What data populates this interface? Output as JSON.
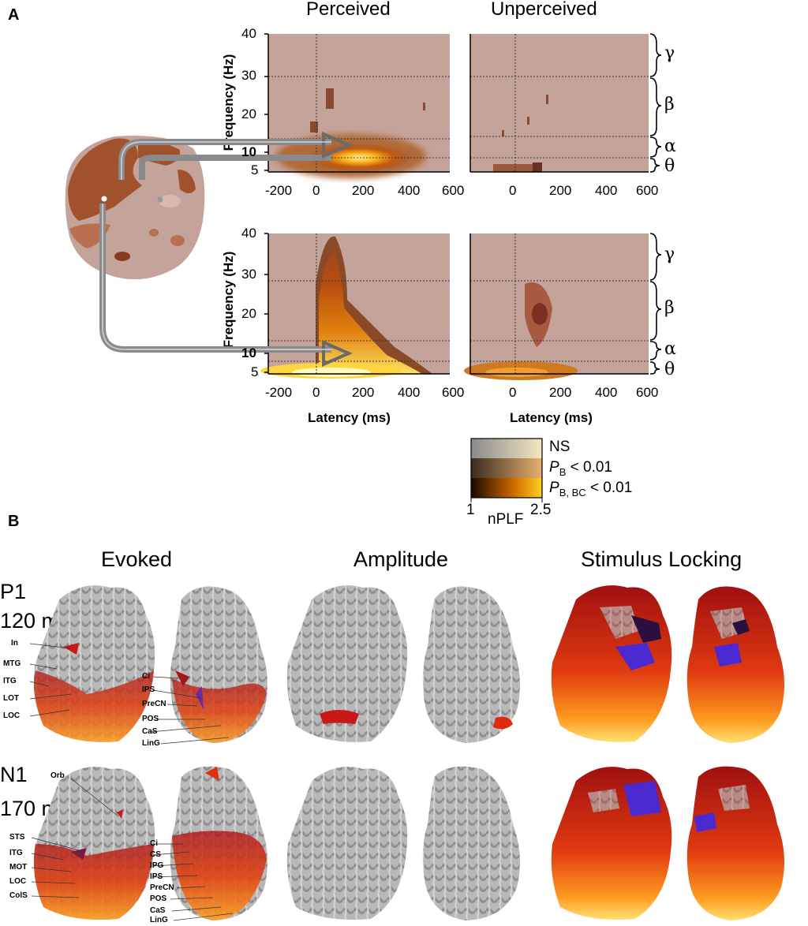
{
  "panel_a": {
    "letter": "A",
    "col_titles": [
      "Perceived",
      "Unperceived"
    ],
    "ylabel": "Frequency (Hz)",
    "xlabel": "Latency (ms)",
    "xticks": [
      "-200",
      "0",
      "200",
      "400",
      "600"
    ],
    "yticks": [
      "40",
      "30",
      "20",
      "10",
      "5"
    ],
    "bands": [
      "γ",
      "β",
      "α",
      "θ"
    ],
    "legend": {
      "ns": "NS",
      "pb": "P",
      "pb_sub": "B",
      "pb_val": " < 0.01",
      "pbbc": "P",
      "pbbc_sub": "B, BC",
      "pbbc_val": " < 0.01",
      "min": "1",
      "max": "2.5",
      "label": "nPLF"
    }
  },
  "panel_b": {
    "letter": "B",
    "col_titles": [
      "Evoked",
      "Amplitude",
      "Stimulus Locking"
    ],
    "rows": [
      {
        "component": "P1",
        "time": "120 ms",
        "left_labels": [
          "In",
          "MTG",
          "ITG",
          "LOT",
          "LOC"
        ],
        "right_labels": [
          "Ci",
          "IPS",
          "PreCN",
          "POS",
          "CaS",
          "LinG"
        ]
      },
      {
        "component": "N1",
        "time": "170 ms",
        "left_labels": [
          "Orb",
          "STS",
          "ITG",
          "MOT",
          "LOC",
          "ColS"
        ],
        "right_labels": [
          "Ci",
          "CS",
          "IPG",
          "IPS",
          "PreCN",
          "POS",
          "CaS",
          "LinG"
        ]
      }
    ]
  },
  "colors": {
    "background": "#c4a39a",
    "hot_dark": "#8a3a10",
    "hot_mid": "#c46010",
    "hot_bright": "#ffd040",
    "cortex": "#a8a8a8",
    "arrow": "#8a8a8a"
  }
}
